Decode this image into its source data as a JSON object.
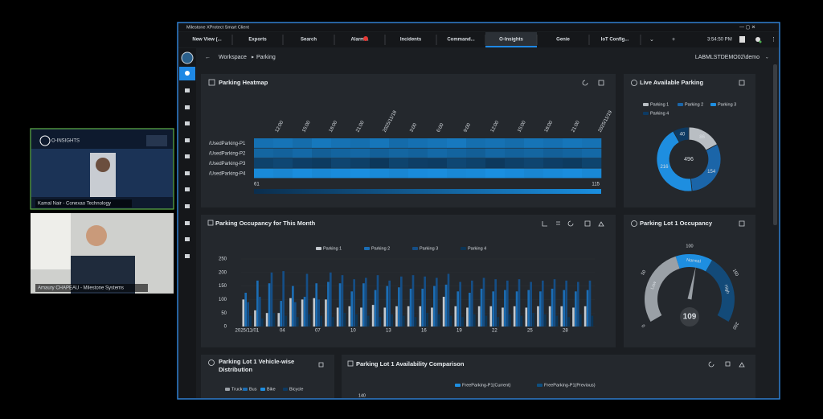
{
  "meeting": {
    "tiles": [
      {
        "name": "Kamal Nair - Conexao Technology",
        "logo": "O-INSIGHTS"
      },
      {
        "name": "Amaury CHAPEAU - Milestone Systems"
      }
    ]
  },
  "window": {
    "title": "Milestone XProtect Smart Client",
    "tabs": [
      "New View (...",
      "Exports",
      "Search",
      "Alarm...",
      "Incidents",
      "Command...",
      "O-Insights",
      "Genie",
      "IoT Config..."
    ],
    "time": "3:54:50 PM",
    "breadcrumb": [
      "Workspace",
      "Parking"
    ],
    "user": "LABMLSTDEMO02\\demo"
  },
  "heatmap": {
    "type": "heatmap",
    "title": "Parking Heatmap",
    "rows": [
      "/UsedParking-P1",
      "/UsedParking-P2",
      "/UsedParking-P3",
      "/UsedParking-P4"
    ],
    "x_labels": [
      "12:00",
      "15:00",
      "18:00",
      "21:00",
      "2025/11/18",
      "3:00",
      "6:00",
      "9:00",
      "12:00",
      "15:00",
      "18:00",
      "21:00",
      "2025/11/19"
    ],
    "values": [
      [
        98,
        100,
        96,
        102,
        99,
        97,
        101,
        95,
        98,
        100,
        103,
        97,
        99,
        96,
        100,
        98,
        101,
        99
      ],
      [
        92,
        90,
        94,
        88,
        91,
        93,
        89,
        92,
        90,
        94,
        91,
        88,
        93,
        90,
        92,
        89,
        91,
        94
      ],
      [
        72,
        75,
        70,
        68,
        74,
        71,
        66,
        73,
        70,
        69,
        75,
        72,
        67,
        71,
        74,
        70,
        68,
        73
      ],
      [
        112,
        110,
        114,
        111,
        113,
        115,
        112,
        110,
        113,
        114,
        111,
        112,
        115,
        113,
        110,
        112,
        114,
        111
      ]
    ],
    "scale": [
      61,
      115
    ],
    "colors": [
      "#0b2e4d",
      "#1a8fe0"
    ]
  },
  "live": {
    "type": "pie",
    "title": "Live Available Parking",
    "categories": [
      "Parking 1",
      "Parking 2",
      "Parking 3",
      "Parking 4"
    ],
    "values": [
      86,
      154,
      216,
      40
    ],
    "colors": [
      "#b9bec3",
      "#1b65a8",
      "#1e8ee0",
      "#0d3a62"
    ],
    "total": 496
  },
  "occupancy": {
    "type": "bar",
    "title": "Parking Occupancy for This Month",
    "categories": [
      "2025/11/01",
      null,
      null,
      "04",
      null,
      null,
      "07",
      null,
      null,
      "10",
      null,
      null,
      "13",
      null,
      null,
      "16",
      null,
      null,
      "19",
      null,
      null,
      "22",
      null,
      null,
      "25",
      null,
      null,
      "28",
      null,
      null
    ],
    "series": [
      {
        "name": "Parking 1",
        "color": "#c4c9ce",
        "values": [
          100,
          60,
          50,
          50,
          105,
          100,
          105,
          100,
          70,
          75,
          70,
          80,
          70,
          75,
          75,
          75,
          70,
          110,
          75,
          70,
          75,
          75,
          70,
          75,
          70,
          75,
          75,
          75,
          70,
          75
        ]
      },
      {
        "name": "Parking 2",
        "color": "#1b6db4",
        "values": [
          125,
          170,
          160,
          95,
          150,
          110,
          160,
          165,
          160,
          130,
          160,
          135,
          150,
          145,
          140,
          140,
          150,
          155,
          130,
          125,
          140,
          130,
          135,
          130,
          135,
          130,
          140,
          135,
          130,
          135
        ]
      },
      {
        "name": "Parking 3",
        "color": "#154e86",
        "values": [
          90,
          110,
          200,
          205,
          90,
          195,
          100,
          200,
          190,
          175,
          180,
          190,
          170,
          185,
          190,
          185,
          180,
          195,
          165,
          170,
          180,
          175,
          170,
          175,
          165,
          170,
          175,
          170,
          165,
          170
        ]
      },
      {
        "name": "Parking 4",
        "color": "#0c3556",
        "values": [
          40,
          30,
          50,
          40,
          35,
          45,
          40,
          35,
          50,
          45,
          40,
          35,
          45,
          40,
          35,
          50,
          45,
          40,
          35,
          45,
          40,
          35,
          45,
          40,
          50,
          45,
          40,
          35,
          45,
          40
        ]
      }
    ],
    "ylim": [
      0,
      250
    ],
    "yticks": [
      0,
      50,
      100,
      150,
      200,
      250
    ]
  },
  "gauge": {
    "type": "gauge",
    "title": "Parking Lot 1 Occupancy",
    "value": 109,
    "lim": [
      0,
      200
    ],
    "ticks": [
      0,
      50,
      100,
      150,
      200
    ],
    "bands": [
      {
        "label": "Low",
        "from": 0,
        "to": 85,
        "color": "#9aa0a6"
      },
      {
        "label": "Normal",
        "from": 85,
        "to": 125,
        "color": "#1e8ee0"
      },
      {
        "label": "High",
        "from": 125,
        "to": 200,
        "color": "#134a78"
      }
    ]
  },
  "vehicle": {
    "title": "Parking Lot 1 Vehicle-wise Distribution",
    "legend": [
      "Truck",
      "Bus",
      "Bike",
      "Bicycle"
    ],
    "colors": [
      "#9aa0a6",
      "#1b6db4",
      "#1e8ee0",
      "#0d3a62"
    ]
  },
  "availability": {
    "title": "Parking Lot 1 Availability Comparison",
    "legend": [
      "FreeParking-P1(Current)",
      "FreeParking-P1(Previous)"
    ],
    "colors": [
      "#1e8ee0",
      "#0e4f80"
    ],
    "yticks": [
      140
    ]
  }
}
